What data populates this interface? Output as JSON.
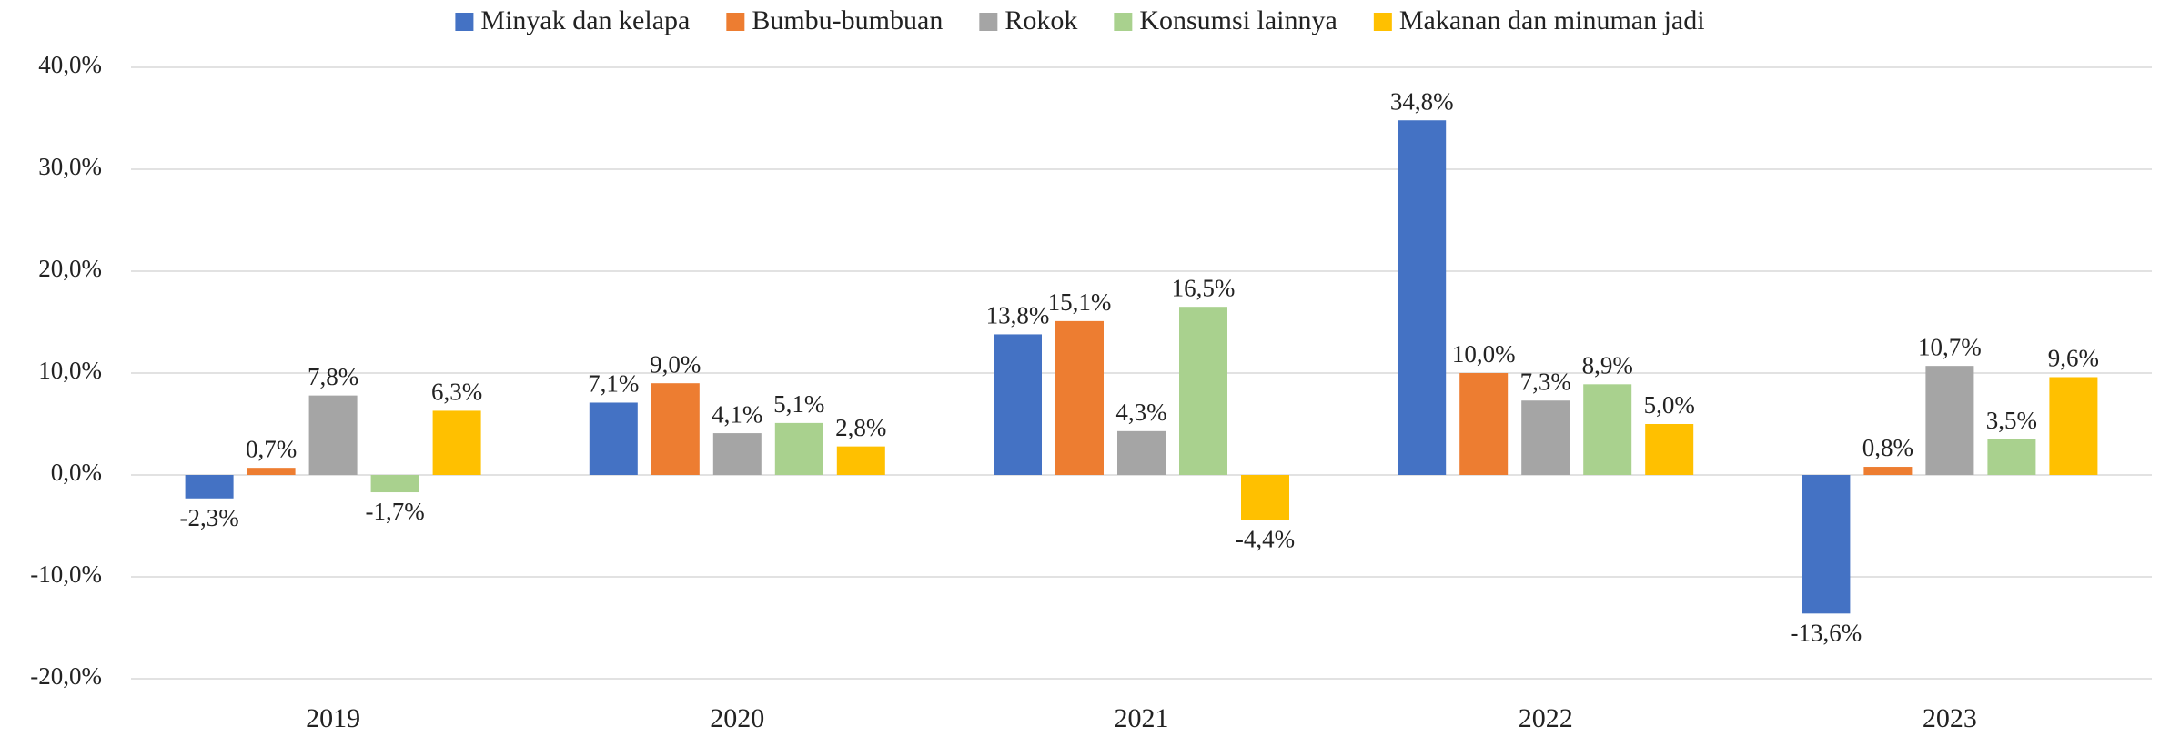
{
  "chart_data": {
    "type": "bar",
    "categories": [
      "2019",
      "2020",
      "2021",
      "2022",
      "2023"
    ],
    "series": [
      {
        "name": "Minyak dan kelapa",
        "color": "#4472c4",
        "values": [
          -2.3,
          7.1,
          13.8,
          34.8,
          -13.6
        ],
        "value_labels": [
          "-2,3%",
          "7,1%",
          "13,8%",
          "34,8%",
          "-13,6%"
        ]
      },
      {
        "name": "Bumbu-bumbuan",
        "color": "#ed7d31",
        "values": [
          0.7,
          9.0,
          15.1,
          10.0,
          0.8
        ],
        "value_labels": [
          "0,7%",
          "9,0%",
          "15,1%",
          "10,0%",
          "0,8%"
        ]
      },
      {
        "name": "Rokok",
        "color": "#a5a5a5",
        "values": [
          7.8,
          4.1,
          4.3,
          7.3,
          10.7
        ],
        "value_labels": [
          "7,8%",
          "4,1%",
          "4,3%",
          "7,3%",
          "10,7%"
        ]
      },
      {
        "name": "Konsumsi lainnya",
        "color": "#a9d18e",
        "values": [
          -1.7,
          5.1,
          16.5,
          8.9,
          3.5
        ],
        "value_labels": [
          "-1,7%",
          "5,1%",
          "16,5%",
          "8,9%",
          "3,5%"
        ]
      },
      {
        "name": "Makanan dan minuman jadi",
        "color": "#ffc000",
        "values": [
          6.3,
          2.8,
          -4.4,
          5.0,
          9.6
        ],
        "value_labels": [
          "6,3%",
          "2,8%",
          "-4,4%",
          "5,0%",
          "9,6%"
        ]
      }
    ],
    "ylim": [
      -20,
      40
    ],
    "yticks": [
      {
        "value": -20,
        "label": "-20,0%"
      },
      {
        "value": -10,
        "label": "-10,0%"
      },
      {
        "value": 0,
        "label": "0,0%"
      },
      {
        "value": 10,
        "label": "10,0%"
      },
      {
        "value": 20,
        "label": "20,0%"
      },
      {
        "value": 30,
        "label": "30,0%"
      },
      {
        "value": 40,
        "label": "40,0%"
      }
    ],
    "grid": true,
    "legend": "top"
  }
}
